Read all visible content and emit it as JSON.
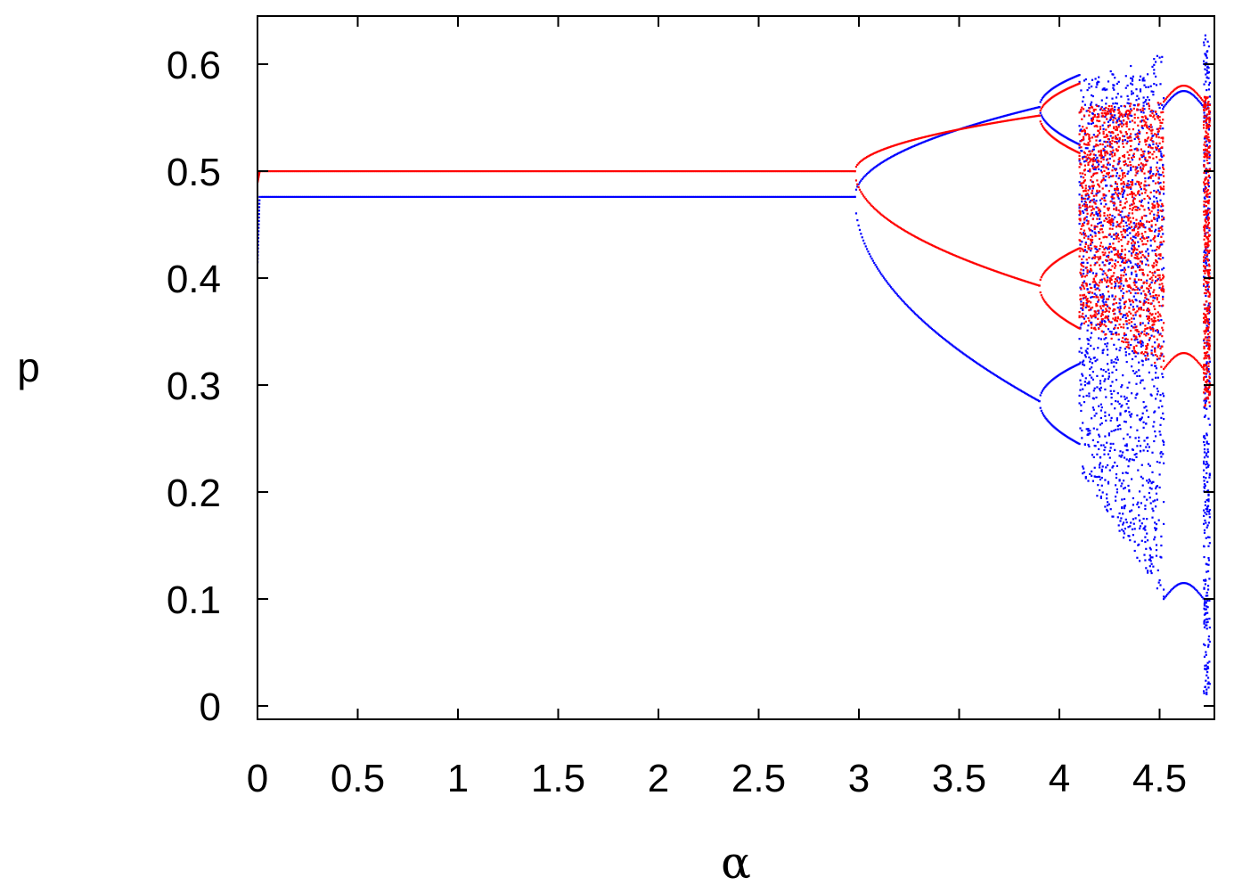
{
  "chart_data": {
    "type": "scatter",
    "title": "",
    "xlabel": "α",
    "ylabel": "p",
    "xlim": [
      0,
      4.75
    ],
    "ylim": [
      0,
      0.64
    ],
    "xticks": [
      "0",
      "0.5",
      "1",
      "1.5",
      "2",
      "2.5",
      "3",
      "3.5",
      "4",
      "4.5"
    ],
    "xtick_values": [
      0,
      0.5,
      1,
      1.5,
      2,
      2.5,
      3,
      3.5,
      4,
      4.5
    ],
    "yticks": [
      "0",
      "0.1",
      "0.2",
      "0.3",
      "0.4",
      "0.5",
      "0.6"
    ],
    "ytick_values": [
      0,
      0.1,
      0.2,
      0.3,
      0.4,
      0.5,
      0.6
    ],
    "grid": false,
    "legend": "none",
    "series": [
      {
        "color": "#0000ff",
        "description_points": {
          "initial": [
            [
              0.0,
              0.415
            ],
            [
              0.01,
              0.476
            ]
          ],
          "stable": [
            [
              0.02,
              0.476
            ],
            [
              2.98,
              0.476
            ]
          ],
          "bifurcation": 2.98,
          "upper_branch_end": [
            3.9,
            0.56
          ],
          "lower_branch_end": [
            3.9,
            0.285
          ],
          "chaos_range": [
            4.1,
            4.52
          ],
          "chaos_envelope_top": [
            [
              4.1,
              0.585
            ],
            [
              4.52,
              0.61
            ]
          ],
          "chaos_envelope_bottom": [
            [
              4.1,
              0.22
            ],
            [
              4.52,
              0.1
            ]
          ],
          "window": [
            4.52,
            4.72
          ],
          "window_branches": [
            0.1,
            0.56
          ],
          "final_chaos": [
            4.72,
            4.75,
            0.01,
            0.63
          ]
        }
      },
      {
        "color": "#ff0000",
        "description_points": {
          "initial": [
            [
              0.0,
              0.49
            ],
            [
              0.01,
              0.5
            ]
          ],
          "stable": [
            [
              0.02,
              0.5
            ],
            [
              2.98,
              0.5
            ]
          ],
          "bifurcation": 2.98,
          "upper_branch_end": [
            3.9,
            0.552
          ],
          "lower_branch_end": [
            3.9,
            0.393
          ],
          "chaos_range": [
            4.1,
            4.52
          ],
          "chaos_envelope_top": [
            [
              4.1,
              0.56
            ],
            [
              4.52,
              0.565
            ]
          ],
          "chaos_envelope_bottom": [
            [
              4.1,
              0.36
            ],
            [
              4.52,
              0.315
            ]
          ],
          "window": [
            4.52,
            4.72
          ],
          "window_branches": [
            0.315,
            0.565
          ],
          "final_chaos": [
            4.72,
            4.75,
            0.28,
            0.57
          ]
        }
      }
    ]
  }
}
